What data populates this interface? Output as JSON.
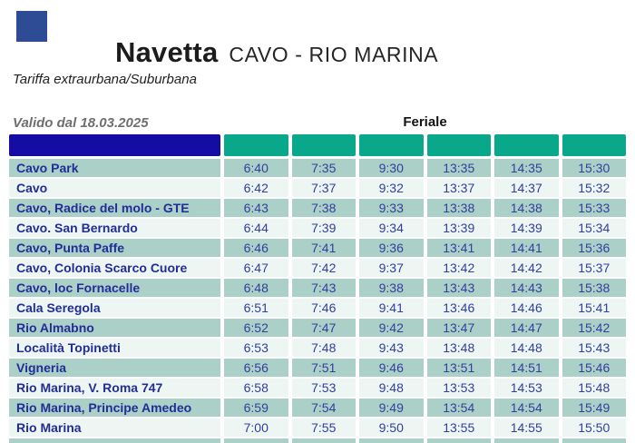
{
  "header": {
    "title": "Navetta",
    "route": "CAVO - RIO MARINA",
    "subtitle": "Tariffa extraurbana/Suburbana"
  },
  "schedule": {
    "valid_from": "Valido dal 18.03.2025",
    "service_label": "Feriale",
    "num_time_columns": 6,
    "rows": [
      {
        "name": "Cavo Park",
        "times": [
          "6:40",
          "7:35",
          "9:30",
          "13:35",
          "14:35",
          "15:30"
        ]
      },
      {
        "name": "Cavo",
        "times": [
          "6:42",
          "7:37",
          "9:32",
          "13:37",
          "14:37",
          "15:32"
        ]
      },
      {
        "name": "Cavo, Radice del molo - GTE",
        "times": [
          "6:43",
          "7:38",
          "9:33",
          "13:38",
          "14:38",
          "15:33"
        ]
      },
      {
        "name": "Cavo. San Bernardo",
        "times": [
          "6:44",
          "7:39",
          "9:34",
          "13:39",
          "14:39",
          "15:34"
        ]
      },
      {
        "name": "Cavo, Punta Paffe",
        "times": [
          "6:46",
          "7:41",
          "9:36",
          "13:41",
          "14:41",
          "15:36"
        ]
      },
      {
        "name": "Cavo, Colonia Scarco Cuore",
        "times": [
          "6:47",
          "7:42",
          "9:37",
          "13:42",
          "14:42",
          "15:37"
        ]
      },
      {
        "name": "Cavo, loc Fornacelle",
        "times": [
          "6:48",
          "7:43",
          "9:38",
          "13:43",
          "14:43",
          "15:38"
        ]
      },
      {
        "name": "Cala Seregola",
        "times": [
          "6:51",
          "7:46",
          "9:41",
          "13:46",
          "14:46",
          "15:41"
        ]
      },
      {
        "name": "Rio Almabno",
        "times": [
          "6:52",
          "7:47",
          "9:42",
          "13:47",
          "14:47",
          "15:42"
        ]
      },
      {
        "name": "Località Topinetti",
        "times": [
          "6:53",
          "7:48",
          "9:43",
          "13:48",
          "14:48",
          "15:43"
        ]
      },
      {
        "name": "Vigneria",
        "times": [
          "6:56",
          "7:51",
          "9:46",
          "13:51",
          "14:51",
          "15:46"
        ]
      },
      {
        "name": "Rio Marina, V. Roma 747",
        "times": [
          "6:58",
          "7:53",
          "9:48",
          "13:53",
          "14:53",
          "15:48"
        ]
      },
      {
        "name": "Rio Marina, Principe Amedeo",
        "times": [
          "6:59",
          "7:54",
          "9:49",
          "13:54",
          "14:54",
          "15:49"
        ]
      },
      {
        "name": "Rio Marina",
        "times": [
          "7:00",
          "7:55",
          "9:50",
          "13:55",
          "14:55",
          "15:50"
        ]
      }
    ]
  },
  "colors": {
    "logo_blue": "#2e4b95",
    "header_navy": "#150ca4",
    "header_teal": "#0aa88b",
    "row_sage": "#abd0c7",
    "row_light": "#eef6f3",
    "text_navy": "#222d97",
    "valid_from_gray": "#6f6f6f"
  }
}
